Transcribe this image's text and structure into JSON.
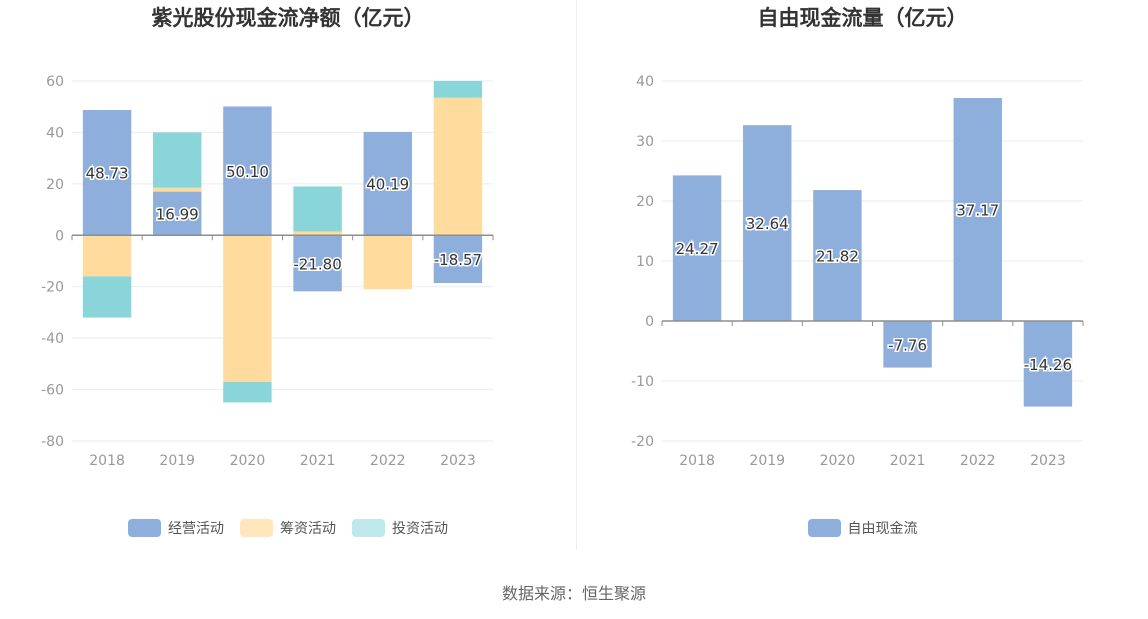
{
  "colors": {
    "operating": "#8eaedb",
    "financing": "#ffdb9e",
    "investing": "#89d5d9",
    "fcf": "#8eaedb"
  },
  "source": "数据来源：恒生聚源",
  "chart_data": [
    {
      "type": "bar",
      "title": "紫光股份现金流净额（亿元）",
      "categories": [
        "2018",
        "2019",
        "2020",
        "2021",
        "2022",
        "2023"
      ],
      "ylim": [
        -80,
        60
      ],
      "yticks": [
        60,
        40,
        20,
        0,
        -20,
        -40,
        -60,
        -80
      ],
      "stacked": true,
      "series": [
        {
          "name": "经营活动",
          "values": [
            48.73,
            16.99,
            50.1,
            -21.8,
            40.19,
            -18.57
          ],
          "labels": [
            "48.73",
            "16.99",
            "50.10",
            "-21.80",
            "40.19",
            "-18.57"
          ]
        },
        {
          "name": "筹资活动",
          "values": [
            -16.0,
            1.5,
            -57.0,
            1.5,
            -21.0,
            53.5
          ]
        },
        {
          "name": "投资活动",
          "values": [
            -16.0,
            21.5,
            -8.0,
            17.5,
            0,
            6.5
          ]
        }
      ],
      "legend": "bottom"
    },
    {
      "type": "bar",
      "title": "自由现金流量（亿元）",
      "categories": [
        "2018",
        "2019",
        "2020",
        "2021",
        "2022",
        "2023"
      ],
      "ylim": [
        -20,
        40
      ],
      "yticks": [
        40,
        30,
        20,
        10,
        0,
        -10,
        -20
      ],
      "series": [
        {
          "name": "自由现金流",
          "values": [
            24.27,
            32.64,
            21.82,
            -7.76,
            37.17,
            -14.26
          ],
          "labels": [
            "24.27",
            "32.64",
            "21.82",
            "-7.76",
            "37.17",
            "-14.26"
          ]
        }
      ],
      "legend": "bottom"
    }
  ]
}
